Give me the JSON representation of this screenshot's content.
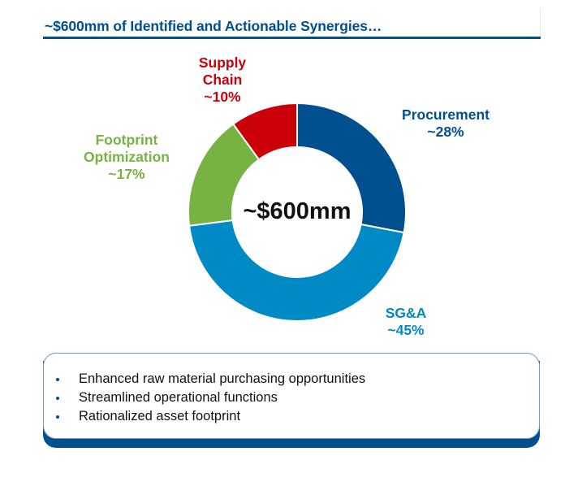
{
  "header": {
    "title": "~$600mm of Identified and Actionable Synergies…"
  },
  "chart_data": {
    "type": "pie",
    "subtype": "donut",
    "center_label": "~$600mm",
    "total": "~$600mm",
    "slices": [
      {
        "name": "Procurement",
        "label": "Procurement",
        "pct_label": "~28%",
        "value": 28,
        "color": "#00508f"
      },
      {
        "name": "SG&A",
        "label": "SG&A",
        "pct_label": "~45%",
        "value": 45,
        "color": "#008ac5"
      },
      {
        "name": "Footprint Optimization",
        "label_lines": [
          "Footprint",
          "Optimization"
        ],
        "pct_label": "~17%",
        "value": 17,
        "color": "#77b342"
      },
      {
        "name": "Supply Chain",
        "label_lines": [
          "Supply",
          "Chain"
        ],
        "pct_label": "~10%",
        "value": 10,
        "color": "#cc0008"
      }
    ],
    "start_angle": "12 o'clock",
    "direction": "clockwise"
  },
  "summary_box": {
    "bullets": [
      "Enhanced raw material purchasing opportunities",
      "Streamlined operational functions",
      "Rationalized asset footprint"
    ]
  }
}
